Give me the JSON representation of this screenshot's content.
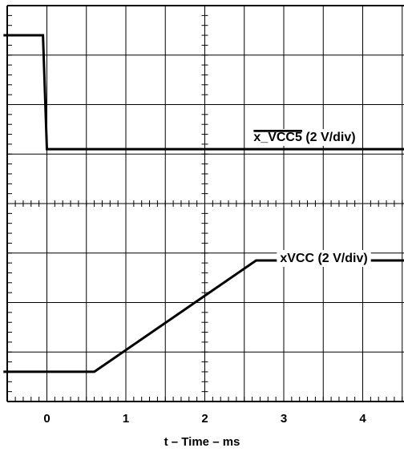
{
  "chart_data": {
    "type": "line",
    "title": "",
    "xlabel": "t – Time – ms",
    "ylabel": "",
    "xlim": [
      -0.55,
      4.6
    ],
    "x_ticks": [
      {
        "value": 0,
        "label": "0"
      },
      {
        "value": 1,
        "label": "1"
      },
      {
        "value": 2,
        "label": "2"
      },
      {
        "value": 3,
        "label": "3"
      },
      {
        "value": 4,
        "label": "4"
      }
    ],
    "grid": true,
    "grid_divisions": {
      "x": 10,
      "y": 8
    },
    "background": "#ffffff",
    "line_color": "#000000",
    "series": [
      {
        "name": "x_VCC5 (2 V/div)",
        "label_overline": true,
        "x": [
          -0.55,
          -0.05,
          0.0,
          4.6
        ],
        "y_div": [
          7.4,
          7.4,
          5.1,
          5.1
        ]
      },
      {
        "name": "xVCC (2 V/div)",
        "label_overline": false,
        "x": [
          -0.55,
          0.6,
          2.65,
          4.6
        ],
        "y_div": [
          0.6,
          0.6,
          2.85,
          2.85
        ]
      }
    ]
  }
}
